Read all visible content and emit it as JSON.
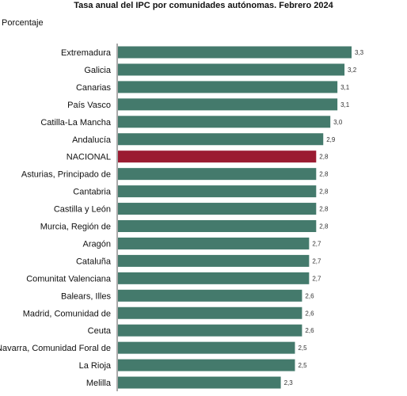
{
  "chart_data": {
    "type": "bar",
    "orientation": "horizontal",
    "title": "Tasa anual del IPC por comunidades autónomas. Febrero 2024",
    "ylabel": "Porcentaje",
    "xlim": [
      0,
      3.3
    ],
    "grid": false,
    "legend": "none",
    "categories": [
      "Extremadura",
      "Galicia",
      "Canarias",
      "País Vasco",
      "Catilla-La Mancha",
      "Andalucía",
      "NACIONAL",
      "Asturias, Principado de",
      "Cantabria",
      "Castilla y León",
      "Murcia, Región de",
      "Aragón",
      "Cataluña",
      "Comunitat Valenciana",
      "Balears, Illes",
      "Madrid, Comunidad de",
      "Ceuta",
      "Navarra, Comunidad Foral de",
      "La Rioja",
      "Melilla"
    ],
    "values": [
      3.3,
      3.2,
      3.1,
      3.1,
      3.0,
      2.9,
      2.8,
      2.8,
      2.8,
      2.8,
      2.8,
      2.7,
      2.7,
      2.7,
      2.6,
      2.6,
      2.6,
      2.5,
      2.5,
      2.3
    ],
    "value_labels": [
      "3,3",
      "3,2",
      "3,1",
      "3,1",
      "3,0",
      "2,9",
      "2,8",
      "2,8",
      "2,8",
      "2,8",
      "2,8",
      "2,7",
      "2,7",
      "2,7",
      "2,6",
      "2,6",
      "2,6",
      "2,5",
      "2,5",
      "2,3"
    ],
    "highlight_category": "NACIONAL",
    "colors": {
      "bar": "#447a6c",
      "highlight": "#9b1b31",
      "axis": "#555555"
    }
  }
}
